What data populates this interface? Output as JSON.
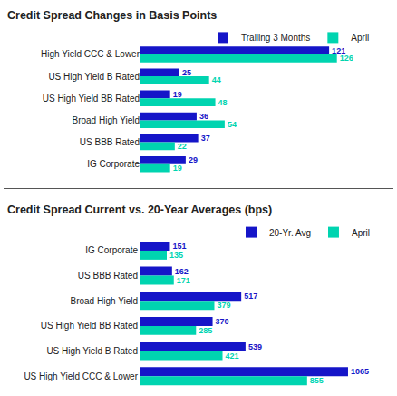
{
  "chart_data": [
    {
      "type": "bar",
      "orientation": "horizontal",
      "title": "Credit Spread Changes in Basis Points",
      "categories": [
        "High Yield CCC & Lower",
        "US High Yield B Rated",
        "US High Yield BB Rated",
        "Broad High Yield",
        "US BBB Rated",
        "IG Corporate"
      ],
      "series": [
        {
          "name": "Trailing 3 Months",
          "color": "#1515c8",
          "values": [
            121,
            25,
            19,
            36,
            37,
            29
          ]
        },
        {
          "name": "April",
          "color": "#00d4b0",
          "values": [
            126,
            44,
            48,
            54,
            22,
            19
          ]
        }
      ],
      "xlim": [
        0,
        150
      ],
      "tick_labels": "y",
      "grid": false,
      "data_labels": true,
      "legend": "upper right"
    },
    {
      "type": "bar",
      "orientation": "horizontal",
      "title": "Credit Spread Current vs. 20-Year Averages (bps)",
      "categories": [
        "IG Corporate",
        "US BBB Rated",
        "Broad High Yield",
        "US High Yield BB Rated",
        "US High Yield B Rated",
        "US High Yield CCC & Lower"
      ],
      "series": [
        {
          "name": "20-Yr. Avg",
          "color": "#1515c8",
          "values": [
            151,
            162,
            517,
            370,
            539,
            1065
          ]
        },
        {
          "name": "April",
          "color": "#00d4b0",
          "values": [
            135,
            171,
            379,
            285,
            421,
            855
          ]
        }
      ],
      "xlim": [
        0,
        1200
      ],
      "tick_labels": "y",
      "grid": false,
      "data_labels": true,
      "legend": "upper right"
    }
  ]
}
